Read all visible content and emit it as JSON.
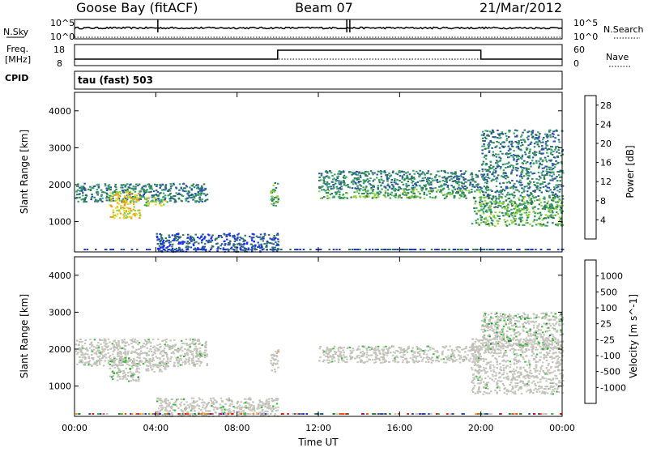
{
  "header": {
    "station": "Goose Bay (fitACF)",
    "beam": "Beam 07",
    "date": "21/Mar/2012"
  },
  "strip_labels": {
    "nsky": "N.Sky",
    "nsearch": "N.Search",
    "freq": "Freq.",
    "mhz": "[MHz]",
    "nave": "Nave",
    "cpid": "CPID",
    "cpid_value": "tau (fast) 503",
    "nsky_ticks": [
      "10^5",
      "10^0"
    ],
    "freq_ticks": [
      "18",
      "8"
    ],
    "nave_ticks": [
      "60",
      "0"
    ]
  },
  "colors": {
    "power": [
      "#1a2cf5",
      "#2a52a8",
      "#2d7a5a",
      "#3aa36a",
      "#8fd13a",
      "#e8d820",
      "#f39a20",
      "#e85a10",
      "#d81818"
    ],
    "velocity": [
      "#e81010",
      "#f05010",
      "#f59020",
      "#c8c8c0",
      "#c0c0b8",
      "#3cb83c",
      "#2a8040",
      "#2c4ab0",
      "#1a30e0"
    ]
  },
  "chart_data": [
    {
      "type": "heatmap",
      "parameter": "Power",
      "xlabel": "",
      "ylabel": "Slant Range [km]",
      "x_ticks": [
        "00:00",
        "04:00",
        "08:00",
        "12:00",
        "16:00",
        "20:00",
        "00:00"
      ],
      "xlim_hours": [
        0,
        24
      ],
      "ylim_km": [
        180,
        4500
      ],
      "y_ticks": [
        1000,
        2000,
        3000,
        4000
      ],
      "colorbar": {
        "label": "Power [dB]",
        "ticks": [
          4,
          8,
          12,
          16,
          20,
          24,
          28
        ],
        "range": [
          0,
          30
        ]
      },
      "echo_regions": [
        {
          "t_start": 0.0,
          "t_end": 6.5,
          "range_start": 1550,
          "range_end": 2050,
          "level": 8
        },
        {
          "t_start": 1.7,
          "t_end": 3.2,
          "range_start": 1100,
          "range_end": 1850,
          "level": 20
        },
        {
          "t_start": 3.4,
          "t_end": 4.5,
          "range_start": 1450,
          "range_end": 1700,
          "level": 16
        },
        {
          "t_start": 9.6,
          "t_end": 10.0,
          "range_start": 1400,
          "range_end": 2100,
          "level": 12
        },
        {
          "t_start": 12.0,
          "t_end": 20.0,
          "range_start": 1650,
          "range_end": 1900,
          "level": 12
        },
        {
          "t_start": 12.0,
          "t_end": 20.0,
          "range_start": 1900,
          "range_end": 2400,
          "level": 8
        },
        {
          "t_start": 19.5,
          "t_end": 24.0,
          "range_start": 900,
          "range_end": 1700,
          "level": 12
        },
        {
          "t_start": 20.0,
          "t_end": 24.0,
          "range_start": 1700,
          "range_end": 3500,
          "level": 8
        },
        {
          "t_start": 4.0,
          "t_end": 10.0,
          "range_start": 200,
          "range_end": 700,
          "level": 4
        }
      ]
    },
    {
      "type": "heatmap",
      "parameter": "Velocity",
      "xlabel": "Time UT",
      "ylabel": "Slant Range [km]",
      "x_ticks": [
        "00:00",
        "04:00",
        "08:00",
        "12:00",
        "16:00",
        "20:00",
        "00:00"
      ],
      "xlim_hours": [
        0,
        24
      ],
      "ylim_km": [
        180,
        4500
      ],
      "y_ticks": [
        1000,
        2000,
        3000,
        4000
      ],
      "colorbar": {
        "label": "Velocity [m s^-1]",
        "ticks": [
          "-1000",
          "-500",
          "-100",
          "-25",
          "25",
          "100",
          "500",
          "1000"
        ],
        "range": [
          -1200,
          1200
        ]
      },
      "echo_regions": [
        {
          "t_start": 0.0,
          "t_end": 6.5,
          "range_start": 1550,
          "range_end": 2300,
          "level": 0
        },
        {
          "t_start": 1.7,
          "t_end": 3.2,
          "range_start": 1150,
          "range_end": 1800,
          "level": 1
        },
        {
          "t_start": 3.4,
          "t_end": 4.5,
          "range_start": 1400,
          "range_end": 1700,
          "level": -1
        },
        {
          "t_start": 9.6,
          "t_end": 10.0,
          "range_start": 1400,
          "range_end": 2000,
          "level": -1
        },
        {
          "t_start": 12.0,
          "t_end": 20.0,
          "range_start": 1650,
          "range_end": 2100,
          "level": 0
        },
        {
          "t_start": 19.5,
          "t_end": 24.0,
          "range_start": 800,
          "range_end": 2300,
          "level": 0
        },
        {
          "t_start": 20.0,
          "t_end": 24.0,
          "range_start": 2000,
          "range_end": 3000,
          "level": 1
        },
        {
          "t_start": 4.0,
          "t_end": 10.0,
          "range_start": 200,
          "range_end": 700,
          "level": 0
        }
      ]
    }
  ],
  "nsky_series": {
    "base_level": 0.75,
    "spike_hours": [
      4.1,
      13.4,
      13.55
    ]
  },
  "freq_series": {
    "segments": [
      {
        "t_start": 0,
        "t_end": 10,
        "level": "low"
      },
      {
        "t_start": 10,
        "t_end": 20,
        "level": "high"
      },
      {
        "t_start": 20,
        "t_end": 24,
        "level": "low"
      }
    ]
  }
}
